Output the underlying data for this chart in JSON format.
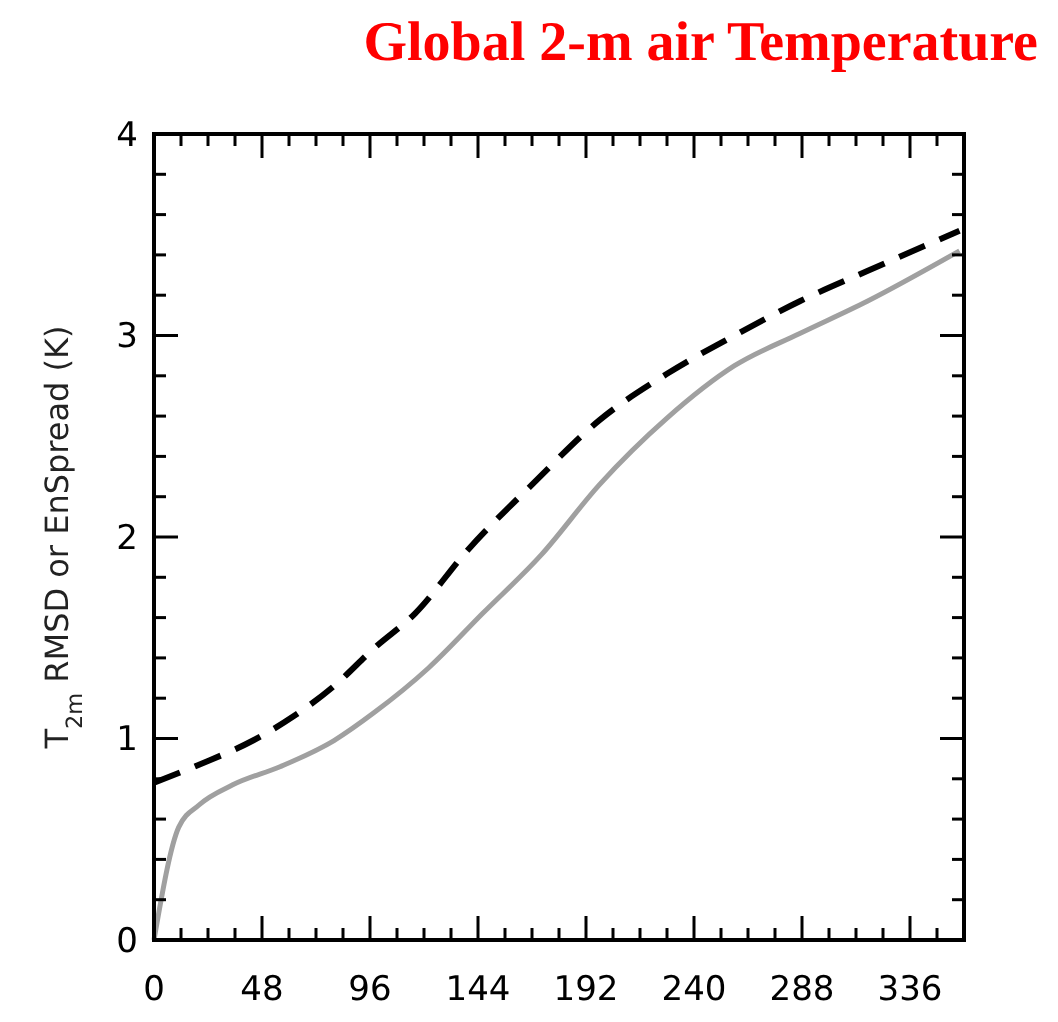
{
  "chart_data": {
    "type": "line",
    "title": "Global 2-m air Temperature",
    "ylabel": "T$_{2m}$ RMSD or EnSpread (K)",
    "xlim": [
      0,
      360
    ],
    "xticks": [
      0,
      {
        "value": 12,
        "label": null
      },
      {
        "value": 24,
        "label": null
      },
      {
        "value": 36,
        "label": null
      },
      48,
      {
        "value": 60,
        "label": null
      },
      {
        "value": 72,
        "label": null
      },
      {
        "value": 84,
        "label": null
      },
      96,
      {
        "value": 108,
        "label": null
      },
      {
        "value": 120,
        "label": null
      },
      {
        "value": 132,
        "label": null
      },
      144,
      {
        "value": 156,
        "label": null
      },
      {
        "value": 168,
        "label": null
      },
      {
        "value": 180,
        "label": null
      },
      192,
      {
        "value": 204,
        "label": null
      },
      {
        "value": 216,
        "label": null
      },
      {
        "value": 228,
        "label": null
      },
      240,
      {
        "value": 252,
        "label": null
      },
      {
        "value": 264,
        "label": null
      },
      {
        "value": 276,
        "label": null
      },
      288,
      {
        "value": 300,
        "label": null
      },
      {
        "value": 312,
        "label": null
      },
      {
        "value": 324,
        "label": null
      },
      336,
      {
        "value": 348,
        "label": null
      },
      {
        "value": 360,
        "label": null
      }
    ],
    "ylim": [
      0,
      4
    ],
    "yticks": [
      0,
      {
        "value": 0.2,
        "label": null
      },
      {
        "value": 0.4,
        "label": null
      },
      {
        "value": 0.6,
        "label": null
      },
      {
        "value": 0.8,
        "label": null
      },
      1,
      {
        "value": 1.2,
        "label": null
      },
      {
        "value": 1.4,
        "label": null
      },
      {
        "value": 1.6,
        "label": null
      },
      {
        "value": 1.8,
        "label": null
      },
      2,
      {
        "value": 2.2,
        "label": null
      },
      {
        "value": 2.4,
        "label": null
      },
      {
        "value": 2.6,
        "label": null
      },
      {
        "value": 2.8,
        "label": null
      },
      3,
      {
        "value": 3.2,
        "label": null
      },
      {
        "value": 3.4,
        "label": null
      },
      {
        "value": 3.6,
        "label": null
      },
      {
        "value": 3.8,
        "label": null
      },
      4
    ],
    "grid": false,
    "series": [
      {
        "color": "#000000",
        "line_style": "dashed",
        "x": [
          0,
          20,
          44,
          62,
          80,
          98,
          116,
          139,
          168,
          198,
          228,
          258,
          287,
          317,
          358
        ],
        "values": [
          0.78,
          0.87,
          0.99,
          1.11,
          1.26,
          1.45,
          1.62,
          1.93,
          2.26,
          2.58,
          2.81,
          3.0,
          3.17,
          3.32,
          3.52
        ]
      },
      {
        "color": "#a0a0a0",
        "line_style": "solid",
        "x": [
          0,
          11,
          20,
          35,
          56,
          80,
          98,
          122,
          146,
          172,
          198,
          228,
          258,
          287,
          317,
          358
        ],
        "values": [
          0.0,
          0.56,
          0.67,
          0.77,
          0.86,
          0.99,
          1.13,
          1.35,
          1.62,
          1.91,
          2.26,
          2.59,
          2.85,
          3.01,
          3.17,
          3.42
        ]
      }
    ]
  }
}
